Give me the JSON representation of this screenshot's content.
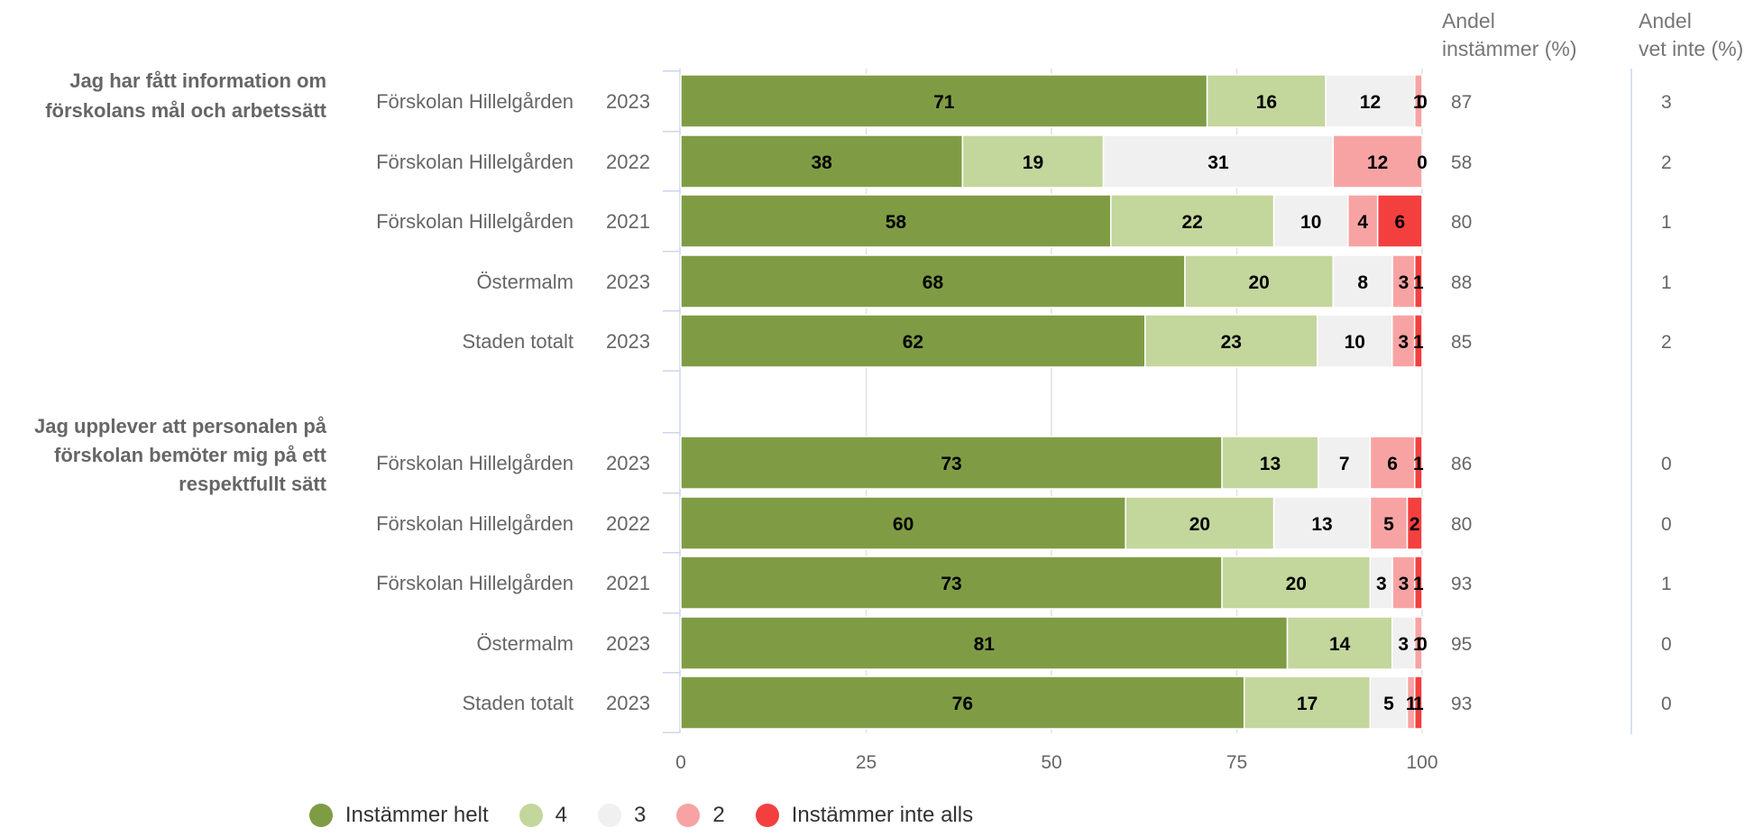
{
  "headers": {
    "andel_instammer": [
      "Andel",
      "instämmer (%)"
    ],
    "andel_vet_inte": [
      "Andel",
      "vet inte (%)"
    ]
  },
  "chart_data": {
    "type": "bar",
    "stacked": true,
    "orientation": "horizontal",
    "xlim": [
      0,
      100
    ],
    "xticks": [
      0,
      25,
      50,
      75,
      100
    ],
    "grid": true,
    "legend_position": "bottom",
    "series": [
      {
        "name": "Instämmer helt",
        "color": "#7f9c45"
      },
      {
        "name": "4",
        "color": "#c3d69c"
      },
      {
        "name": "3",
        "color": "#f0f0f0"
      },
      {
        "name": "2",
        "color": "#f7a3a3"
      },
      {
        "name": "Instämmer inte alls",
        "color": "#f43f3f"
      }
    ],
    "groups": [
      {
        "question": [
          "Jag har fått information om",
          "förskolans mål och arbetssätt"
        ],
        "rows": [
          {
            "unit": "Förskolan Hillelgården",
            "year": "2023",
            "values": [
              71,
              16,
              12,
              1,
              0
            ],
            "andel_instammer": "87",
            "andel_vet_inte": "3"
          },
          {
            "unit": "Förskolan Hillelgården",
            "year": "2022",
            "values": [
              38,
              19,
              31,
              12,
              0
            ],
            "andel_instammer": "58",
            "andel_vet_inte": "2"
          },
          {
            "unit": "Förskolan Hillelgården",
            "year": "2021",
            "values": [
              58,
              22,
              10,
              4,
              6
            ],
            "andel_instammer": "80",
            "andel_vet_inte": "1"
          },
          {
            "unit": "Östermalm",
            "year": "2023",
            "values": [
              68,
              20,
              8,
              3,
              1
            ],
            "andel_instammer": "88",
            "andel_vet_inte": "1"
          },
          {
            "unit": "Staden totalt",
            "year": "2023",
            "values": [
              62,
              23,
              10,
              3,
              1
            ],
            "andel_instammer": "85",
            "andel_vet_inte": "2"
          }
        ]
      },
      {
        "question": [
          "Jag upplever att personalen på",
          "förskolan bemöter mig på ett",
          "respektfullt sätt"
        ],
        "rows": [
          {
            "unit": "Förskolan Hillelgården",
            "year": "2023",
            "values": [
              73,
              13,
              7,
              6,
              1
            ],
            "andel_instammer": "86",
            "andel_vet_inte": "0"
          },
          {
            "unit": "Förskolan Hillelgården",
            "year": "2022",
            "values": [
              60,
              20,
              13,
              5,
              2
            ],
            "andel_instammer": "80",
            "andel_vet_inte": "0"
          },
          {
            "unit": "Förskolan Hillelgården",
            "year": "2021",
            "values": [
              73,
              20,
              3,
              3,
              1
            ],
            "andel_instammer": "93",
            "andel_vet_inte": "1"
          },
          {
            "unit": "Östermalm",
            "year": "2023",
            "values": [
              81,
              14,
              3,
              1,
              0
            ],
            "andel_instammer": "95",
            "andel_vet_inte": "0"
          },
          {
            "unit": "Staden totalt",
            "year": "2023",
            "values": [
              76,
              17,
              5,
              1,
              1
            ],
            "andel_instammer": "93",
            "andel_vet_inte": "0"
          }
        ]
      }
    ]
  }
}
